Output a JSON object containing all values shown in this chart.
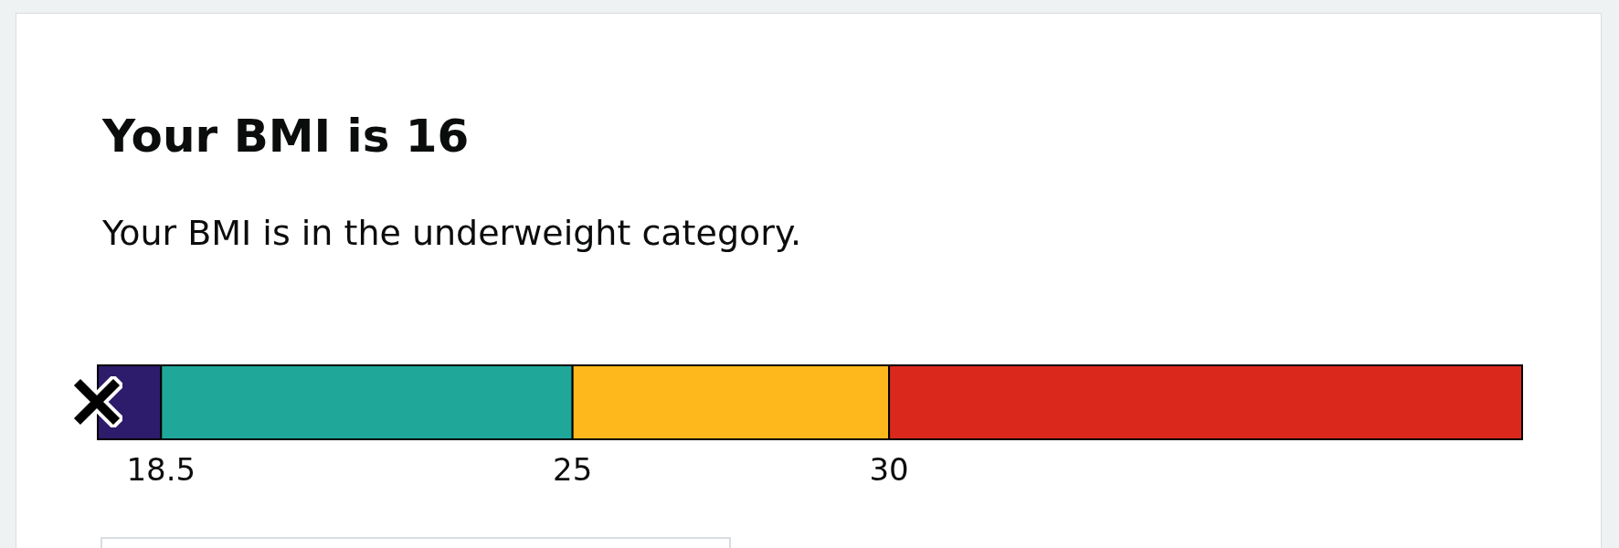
{
  "chart_data": {
    "type": "bar",
    "orientation": "horizontal",
    "title": "Your BMI is 16",
    "subtitle": "Your BMI is in the underweight category.",
    "categories": [
      null
    ],
    "series": [
      {
        "color": "#2d1b6b",
        "base": [
          17.5
        ],
        "values": [
          1
        ]
      },
      {
        "color": "#1fa899",
        "base": [
          18.5
        ],
        "values": [
          6.5
        ]
      },
      {
        "color": "#ffb81c",
        "base": [
          25
        ],
        "values": [
          5
        ]
      },
      {
        "color": "#da291c",
        "base": [
          30
        ],
        "values": [
          10
        ]
      }
    ],
    "xlim": [
      17.5,
      40
    ],
    "xticks": [
      18.5,
      25,
      30
    ]
  }
}
